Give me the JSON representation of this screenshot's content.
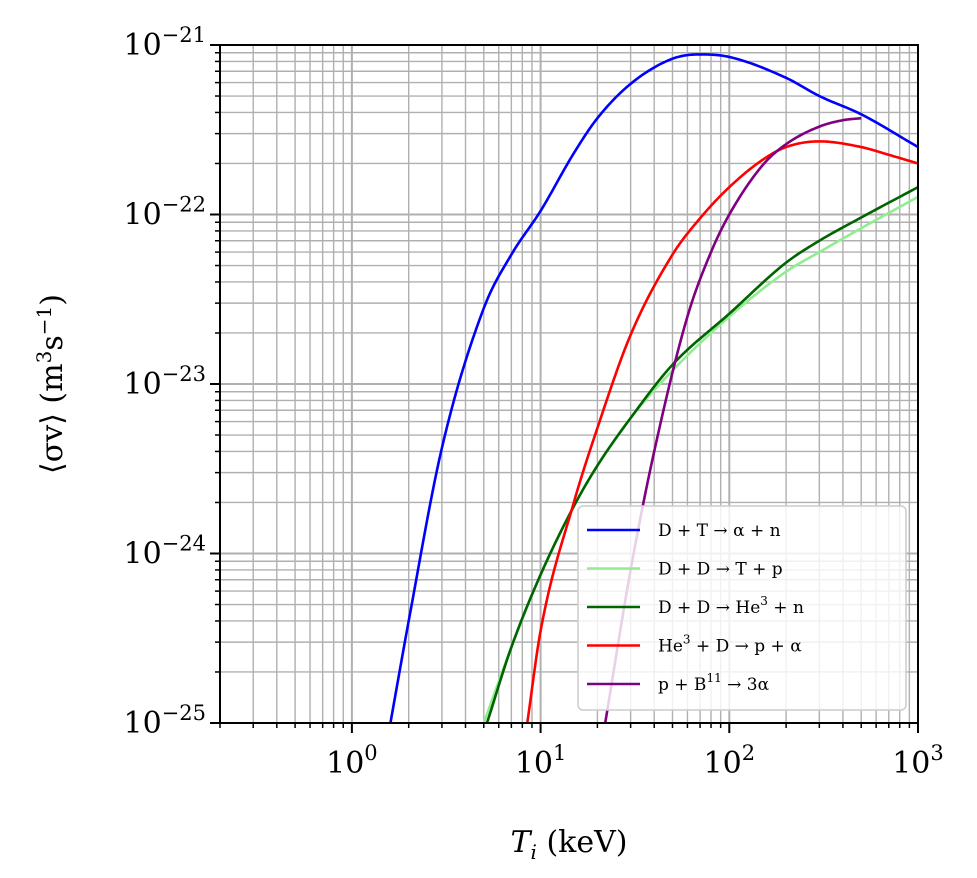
{
  "chart_data": {
    "type": "line",
    "xscale": "log",
    "yscale": "log",
    "xlim": [
      0.2,
      1000
    ],
    "ylim": [
      1e-25,
      1e-21
    ],
    "grid": "both major and minor",
    "legend_position": "lower-right",
    "xlabel": {
      "var": "T",
      "sub": "i",
      "unit": " (keV)"
    },
    "ylabel": {
      "text": "⟨σv⟩ (m",
      "sup1": "3",
      "mid": "s",
      "sup2": "−1",
      "end": ")"
    },
    "x_ticks": [
      {
        "value": 1,
        "base": "10",
        "exp": "0"
      },
      {
        "value": 10,
        "base": "10",
        "exp": "1"
      },
      {
        "value": 100,
        "base": "10",
        "exp": "2"
      },
      {
        "value": 1000,
        "base": "10",
        "exp": "3"
      }
    ],
    "y_ticks": [
      {
        "value": 1e-25,
        "base": "10",
        "exp": "−25"
      },
      {
        "value": 1e-24,
        "base": "10",
        "exp": "−24"
      },
      {
        "value": 1e-23,
        "base": "10",
        "exp": "−23"
      },
      {
        "value": 1e-22,
        "base": "10",
        "exp": "−22"
      },
      {
        "value": 1e-21,
        "base": "10",
        "exp": "−21"
      }
    ],
    "series": [
      {
        "name": "D + T → α + n",
        "label_parts": [
          {
            "t": "D + T → α + n"
          }
        ],
        "color": "#0000ff",
        "x": [
          1.6,
          2,
          3,
          5,
          7,
          10,
          15,
          20,
          30,
          50,
          70,
          100,
          200,
          300,
          500,
          1000
        ],
        "y": [
          1e-25,
          4e-25,
          4.2e-24,
          2.8e-23,
          5.8e-23,
          1.05e-22,
          2.3e-22,
          3.7e-22,
          5.9e-22,
          8.3e-22,
          8.8e-22,
          8.5e-22,
          6.4e-22,
          5e-22,
          3.9e-22,
          2.5e-22
        ]
      },
      {
        "name": "D + D → T + p",
        "label_parts": [
          {
            "t": "D + D → T + p"
          }
        ],
        "color": "#90ee90",
        "x": [
          5,
          7,
          10,
          15,
          20,
          30,
          50,
          100,
          200,
          300,
          500,
          1000
        ],
        "y": [
          1e-25,
          2.8e-25,
          7.5e-25,
          1.9e-24,
          3.3e-24,
          6.3e-24,
          1.2e-23,
          2.5e-23,
          4.6e-23,
          6e-23,
          8.3e-23,
          1.27e-22
        ]
      },
      {
        "name": "D + D → He3 + n",
        "label_parts": [
          {
            "t": "D + D → He"
          },
          {
            "sup": "3"
          },
          {
            "t": " + n"
          }
        ],
        "color": "#006400",
        "x": [
          5.2,
          7,
          10,
          15,
          20,
          30,
          50,
          100,
          200,
          300,
          500,
          1000
        ],
        "y": [
          1e-25,
          2.8e-25,
          7.5e-25,
          1.9e-24,
          3.3e-24,
          6.3e-24,
          1.3e-23,
          2.6e-23,
          5.2e-23,
          7e-23,
          9.6e-23,
          1.45e-22
        ]
      },
      {
        "name": "He3 + D → p + α",
        "label_parts": [
          {
            "t": "He"
          },
          {
            "sup": "3"
          },
          {
            "t": " + D → p + α"
          }
        ],
        "color": "#ff0000",
        "x": [
          8.5,
          10,
          15,
          20,
          30,
          50,
          70,
          100,
          150,
          200,
          300,
          500,
          700,
          1000
        ],
        "y": [
          1e-25,
          3.5e-25,
          2e-24,
          5.5e-24,
          1.95e-23,
          5.8e-23,
          9.5e-23,
          1.45e-22,
          2.1e-22,
          2.5e-22,
          2.7e-22,
          2.5e-22,
          2.25e-22,
          2e-22
        ]
      },
      {
        "name": "p + B11 → 3α",
        "label_parts": [
          {
            "t": "p + B"
          },
          {
            "sup": "11"
          },
          {
            "t": " → 3α"
          }
        ],
        "color": "#800080",
        "x": [
          22,
          30,
          40,
          60,
          80,
          100,
          150,
          200,
          300,
          400,
          500
        ],
        "y": [
          1e-25,
          8e-25,
          4e-24,
          2.5e-23,
          6e-23,
          1e-22,
          1.95e-22,
          2.6e-22,
          3.3e-22,
          3.6e-22,
          3.7e-22
        ]
      }
    ]
  }
}
